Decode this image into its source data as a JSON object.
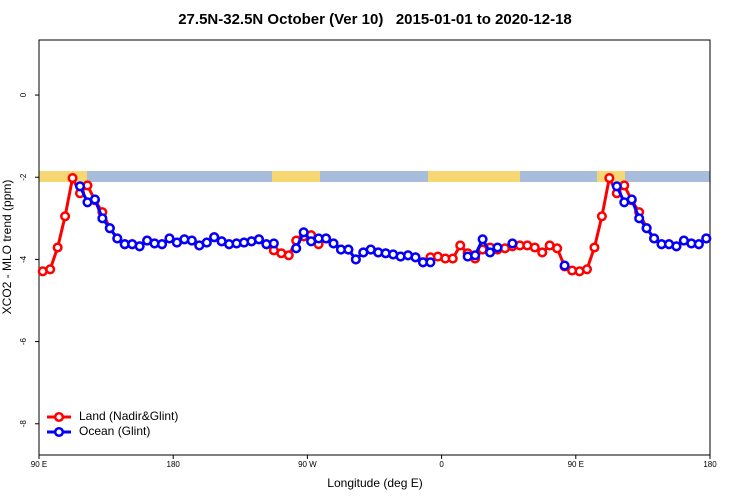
{
  "chart_data": {
    "type": "line",
    "title": "27.5N-32.5N October (Ver 10)   2015-01-01 to 2020-12-18",
    "xlabel": "Longitude (deg E)",
    "ylabel": "XCO2 - MLO trend (ppm)",
    "x": [
      92.5,
      97.5,
      102.5,
      107.5,
      112.5,
      117.5,
      122.5,
      127.5,
      132.5,
      137.5,
      142.5,
      147.5,
      152.5,
      157.5,
      162.5,
      167.5,
      172.5,
      177.5,
      182.5,
      187.5,
      192.5,
      197.5,
      202.5,
      207.5,
      212.5,
      217.5,
      222.5,
      227.5,
      232.5,
      237.5,
      242.5,
      247.5,
      252.5,
      257.5,
      262.5,
      267.5,
      272.5,
      277.5,
      282.5,
      287.5,
      292.5,
      297.5,
      302.5,
      307.5,
      312.5,
      317.5,
      322.5,
      327.5,
      332.5,
      337.5,
      342.5,
      347.5,
      352.5,
      357.5,
      362.5,
      367.5,
      372.5,
      377.5,
      382.5,
      387.5,
      392.5,
      397.5,
      402.5,
      407.5,
      412.5,
      417.5,
      422.5,
      427.5,
      432.5,
      437.5,
      442.5,
      447.5,
      452.5,
      457.5,
      462.5,
      467.5,
      472.5,
      477.5,
      482.5,
      487.5,
      492.5,
      497.5,
      502.5,
      507.5,
      512.5,
      517.5,
      522.5,
      527.5,
      532.5,
      537.5
    ],
    "series": [
      {
        "name": "Land (Nadir&Glint)",
        "color": "#ff0000",
        "values": [
          -4.29,
          -4.24,
          -3.71,
          -2.95,
          -2.02,
          -2.39,
          -2.2,
          -2.56,
          -2.85,
          -3.24,
          -3.49,
          -3.63,
          -3.63,
          -3.68,
          -3.54,
          -3.61,
          -3.63,
          -3.49,
          -3.59,
          -3.51,
          -3.54,
          -3.66,
          -3.59,
          -3.46,
          -3.56,
          -3.63,
          -3.61,
          -3.59,
          -3.56,
          -3.51,
          -3.63,
          -3.78,
          -3.85,
          -3.9,
          -3.54,
          -3.44,
          -3.41,
          -3.63,
          -3.49,
          -3.61,
          -3.76,
          -3.76,
          -4.0,
          -3.83,
          -3.76,
          -3.83,
          -3.85,
          -3.88,
          -3.93,
          -3.9,
          -3.95,
          -4.07,
          -3.95,
          -3.93,
          -3.98,
          -3.98,
          -3.66,
          -3.85,
          -3.98,
          -3.76,
          -3.71,
          -3.76,
          -3.73,
          -3.68,
          -3.66,
          -3.66,
          -3.71,
          -3.83,
          -3.66,
          -3.73,
          -4.17,
          -4.27,
          -4.29,
          -4.24,
          -3.71,
          -2.95,
          -2.02,
          -2.39,
          -2.2,
          -2.56,
          -2.85,
          -3.24,
          -3.49,
          -3.63,
          -3.63,
          -3.68,
          -3.54,
          -3.61,
          -3.63,
          -3.49
        ]
      },
      {
        "name": "Ocean (Glint)",
        "color": "#0000ff",
        "values": [
          null,
          null,
          null,
          null,
          null,
          -2.22,
          -2.61,
          -2.54,
          -3.0,
          -3.24,
          -3.49,
          -3.63,
          -3.63,
          -3.68,
          -3.54,
          -3.61,
          -3.63,
          -3.49,
          -3.59,
          -3.51,
          -3.54,
          -3.66,
          -3.59,
          -3.46,
          -3.56,
          -3.63,
          -3.61,
          -3.59,
          -3.56,
          -3.51,
          -3.63,
          -3.61,
          null,
          null,
          -3.73,
          -3.34,
          -3.56,
          -3.49,
          -3.49,
          -3.61,
          -3.76,
          -3.76,
          -4.0,
          -3.83,
          -3.76,
          -3.83,
          -3.85,
          -3.88,
          -3.93,
          -3.9,
          -3.95,
          -4.07,
          -4.07,
          null,
          null,
          null,
          null,
          -3.93,
          -3.9,
          -3.51,
          -3.83,
          -3.71,
          null,
          -3.61,
          null,
          null,
          null,
          null,
          null,
          null,
          -4.15,
          null,
          null,
          null,
          null,
          null,
          null,
          -2.22,
          -2.61,
          -2.54,
          -3.0,
          -3.24,
          -3.49,
          -3.63,
          -3.63,
          -3.68,
          -3.54,
          -3.61,
          -3.63,
          -3.49
        ]
      }
    ],
    "xlim": [
      90,
      540
    ],
    "xticks": [
      {
        "value": 90,
        "label": "90 E"
      },
      180,
      {
        "value": 270,
        "label": "90 W"
      },
      {
        "value": 360,
        "label": "0"
      },
      {
        "value": 450,
        "label": "90 E"
      },
      {
        "value": 540,
        "label": "180"
      }
    ],
    "ylim": [
      -8.76,
      1.34
    ],
    "yticks": [
      -8,
      -6,
      -4,
      -2,
      0
    ],
    "legend": "lower left"
  }
}
